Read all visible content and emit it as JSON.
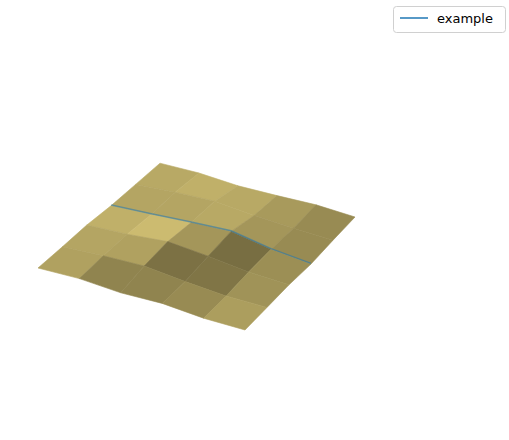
{
  "chart_data": {
    "type": "surface",
    "tick_labels": false,
    "grid": false,
    "legend": "upper right",
    "xlim": [
      0,
      1
    ],
    "ylim": [
      0,
      1
    ],
    "zlim": [
      0,
      1
    ],
    "surface": {
      "color": "#a89a5c",
      "x": [
        0,
        0.2,
        0.4,
        0.6,
        0.8,
        1
      ],
      "y": [
        0,
        0.2,
        0.4,
        0.6,
        0.8,
        1
      ],
      "z": [
        [
          0.1,
          0.14,
          0.12,
          0.16,
          0.13,
          0.15
        ],
        [
          0.12,
          0.18,
          0.22,
          0.17,
          0.14,
          0.16
        ],
        [
          0.15,
          0.2,
          0.28,
          0.24,
          0.18,
          0.17
        ],
        [
          0.14,
          0.19,
          0.25,
          0.3,
          0.2,
          0.15
        ],
        [
          0.16,
          0.22,
          0.26,
          0.21,
          0.19,
          0.18
        ],
        [
          0.18,
          0.2,
          0.17,
          0.19,
          0.22,
          0.2
        ]
      ]
    },
    "series": [
      {
        "name": "example",
        "type": "line",
        "color": "#1f77b4",
        "x": [
          0,
          0.2,
          0.4,
          0.6,
          0.8,
          1
        ],
        "y": [
          0.6,
          0.6,
          0.6,
          0.6,
          0.6,
          0.6
        ],
        "values": [
          0.15,
          0.2,
          0.26,
          0.31,
          0.21,
          0.16
        ]
      }
    ]
  }
}
